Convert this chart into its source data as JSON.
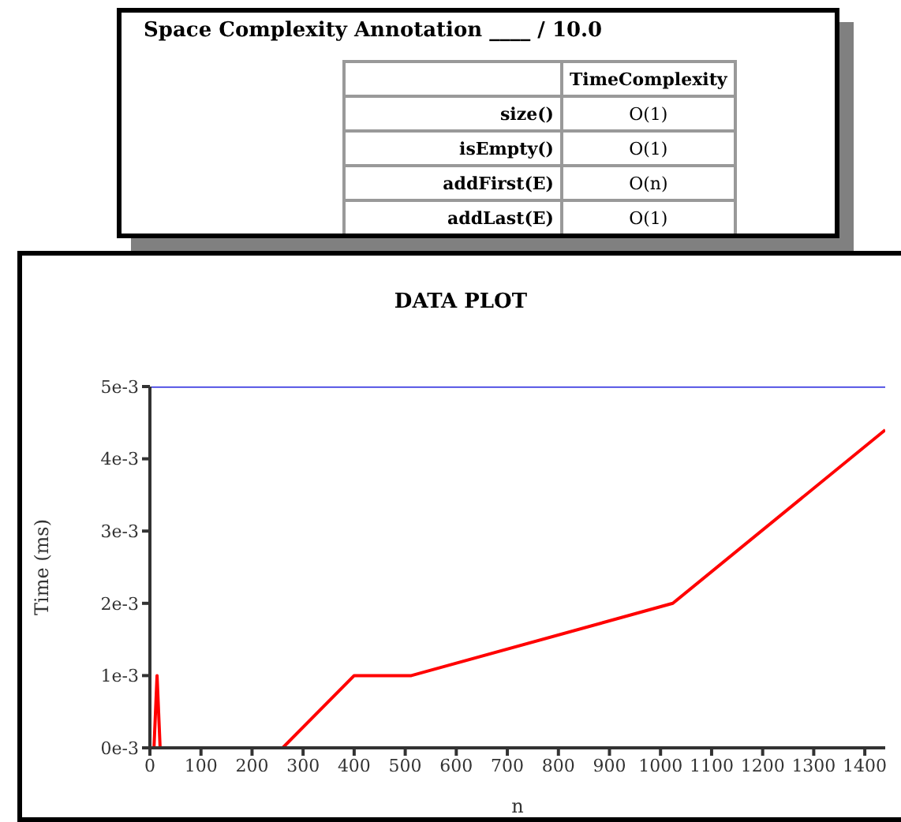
{
  "chart_data": [
    {
      "type": "other",
      "title": "Space Complexity Annotation ____ / 10.0",
      "annotations": [
        "TimeComplexity",
        "size()",
        "O(1)",
        "isEmpty()",
        "O(1)",
        "addFirst(E)",
        "O(n)",
        "addLast(E)",
        "O(1)"
      ]
    },
    {
      "type": "line",
      "title": "DATA PLOT",
      "xlabel": "n",
      "ylabel": "Time (ms)",
      "marker": "none",
      "line_style": "solid",
      "grid": false,
      "legend": false,
      "xlim": [
        0,
        1440
      ],
      "xticks": [
        0,
        100,
        200,
        300,
        400,
        500,
        600,
        700,
        800,
        900,
        1000,
        1100,
        1200,
        1300,
        1400
      ],
      "ylim": [
        0,
        0.005
      ],
      "yticks": [
        {
          "value": 0,
          "label": "0e-3"
        },
        {
          "value": 0.001,
          "label": "1e-3"
        },
        {
          "value": 0.002,
          "label": "2e-3"
        },
        {
          "value": 0.003,
          "label": "3e-3"
        },
        {
          "value": 0.004,
          "label": "4e-3"
        },
        {
          "value": 0.005,
          "label": "5e-3"
        }
      ],
      "series": [
        {
          "color": "#2222dd",
          "x": [
            0,
            1440
          ],
          "values": [
            0.005,
            0.005
          ]
        },
        {
          "color": "#ff0000",
          "x": [
            0,
            8,
            14,
            20,
            260,
            400,
            512,
            1024,
            1440
          ],
          "values": [
            0,
            0,
            0.001,
            0,
            0,
            0.001,
            0.001,
            0.002,
            0.0044
          ]
        }
      ]
    }
  ]
}
